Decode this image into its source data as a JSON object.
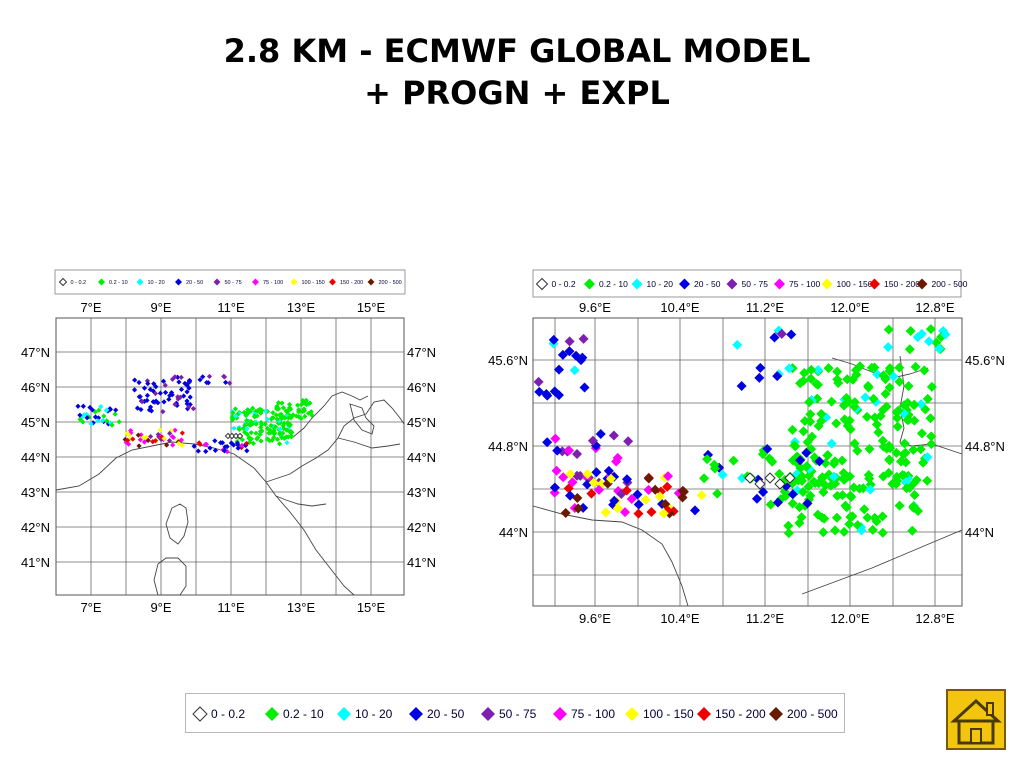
{
  "slide": {
    "title_line1": "2.8 KM - ECMWF GLOBAL MODEL",
    "title_line2": "+ PROGN + EXPL"
  },
  "legend": {
    "classes": [
      {
        "label": "0 - 0.2",
        "color": "#ffffff",
        "hollow": true
      },
      {
        "label": "0.2 - 10",
        "color": "#00ee00"
      },
      {
        "label": "10 - 20",
        "color": "#00ffff"
      },
      {
        "label": "20 - 50",
        "color": "#0000e0"
      },
      {
        "label": "50 - 75",
        "color": "#7f1fb0"
      },
      {
        "label": "75 - 100",
        "color": "#ff00ff"
      },
      {
        "label": "100 - 150",
        "color": "#ffff00"
      },
      {
        "label": "150 - 200",
        "color": "#ee0000"
      },
      {
        "label": "200 - 500",
        "color": "#6a1a00"
      }
    ]
  },
  "maps": {
    "left": {
      "lon_ticks": [
        "7°E",
        "9°E",
        "11°E",
        "13°E",
        "15°E"
      ],
      "lat_ticks": [
        "47°N",
        "46°N",
        "45°N",
        "44°N",
        "43°N",
        "42°N",
        "41°N"
      ]
    },
    "right": {
      "lon_ticks": [
        "9.6°E",
        "10.4°E",
        "11.2°E",
        "12.0°E",
        "12.8°E"
      ],
      "lat_ticks": [
        "45.6°N",
        "44.8°N",
        "44°N"
      ]
    }
  },
  "nav": {
    "home_icon": "home-icon"
  }
}
